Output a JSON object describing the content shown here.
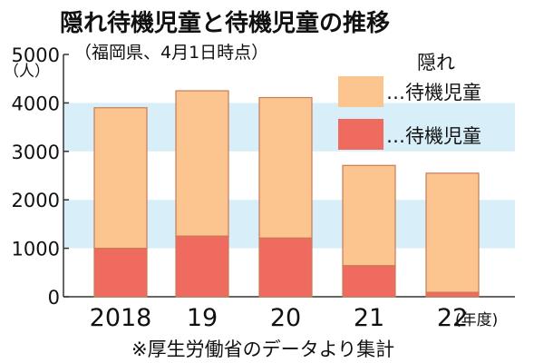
{
  "chart_data": {
    "type": "bar",
    "title": "隠れ待機児童と待機児童の推移",
    "subtitle": "（福岡県、4月1日時点）",
    "unit_label": "（人）",
    "source": "※厚生労働省のデータより集計",
    "xunit": "(年度)",
    "categories": [
      "2018",
      "19",
      "20",
      "21",
      "22"
    ],
    "ylim": [
      0,
      5000
    ],
    "yticks": [
      "0",
      "1000",
      "2000",
      "3000",
      "4000",
      "5000"
    ],
    "series": [
      {
        "name": "待機児童",
        "values": [
          1000,
          1250,
          1210,
          640,
          90
        ]
      },
      {
        "name": "隠れ待機児童",
        "values": [
          2900,
          3000,
          2900,
          2070,
          2460
        ]
      }
    ],
    "legend": [
      {
        "text": "…隠れ\n待機児童",
        "lines": [
          "隠れ",
          "…待機児童"
        ],
        "color": "#fcc58f"
      },
      {
        "text": "…待機児童",
        "lines": [
          "…待機児童"
        ],
        "color": "#ef6a5f"
      }
    ],
    "band_color": "#d8eef8",
    "bar_border": "#c87b55",
    "grid": "alternating horizontal bands",
    "legend_position": "top-right"
  }
}
